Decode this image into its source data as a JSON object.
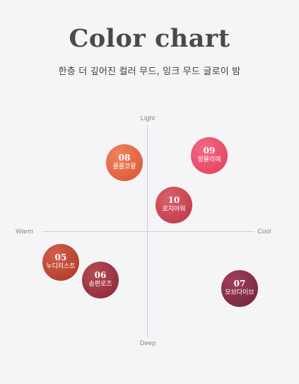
{
  "header": {
    "title": "Color chart",
    "subtitle": "한층 더 깊어진 컬러 무드, 잉크 무드 글로이 밤"
  },
  "axes": {
    "top": "Light",
    "bottom": "Deep",
    "left": "Warm",
    "right": "Cool"
  },
  "shades": [
    {
      "number": "08",
      "name": "콜콜코랄",
      "color": "#e0603d"
    },
    {
      "number": "09",
      "name": "핑뮬리에",
      "color": "#e84966"
    },
    {
      "number": "10",
      "name": "로지아워",
      "color": "#c6414f"
    },
    {
      "number": "05",
      "name": "누디리스트",
      "color": "#b7412f"
    },
    {
      "number": "06",
      "name": "솜편로즈",
      "color": "#953240"
    },
    {
      "number": "07",
      "name": "모브다이브",
      "color": "#7e2a43"
    }
  ]
}
